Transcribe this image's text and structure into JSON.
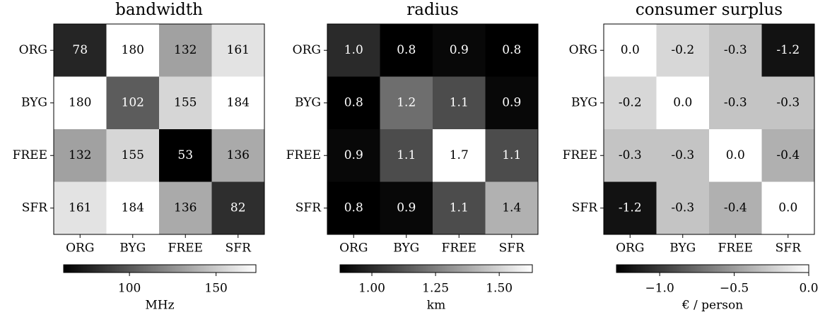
{
  "chart_data": [
    {
      "type": "heatmap",
      "title": "bandwidth",
      "colormap": "gray",
      "x_categories": [
        "ORG",
        "BYG",
        "FREE",
        "SFR"
      ],
      "y_categories": [
        "ORG",
        "BYG",
        "FREE",
        "SFR"
      ],
      "values": [
        [
          78,
          180,
          132,
          161
        ],
        [
          180,
          102,
          155,
          184
        ],
        [
          132,
          155,
          53,
          136
        ],
        [
          161,
          184,
          136,
          82
        ]
      ],
      "clim": [
        62,
        173
      ],
      "cticks": [
        100,
        150
      ],
      "clabel": "MHz"
    },
    {
      "type": "heatmap",
      "title": "radius",
      "colormap": "gray",
      "x_categories": [
        "ORG",
        "BYG",
        "FREE",
        "SFR"
      ],
      "y_categories": [
        "ORG",
        "BYG",
        "FREE",
        "SFR"
      ],
      "values": [
        [
          1.0,
          0.8,
          0.9,
          0.8
        ],
        [
          0.8,
          1.2,
          1.1,
          0.9
        ],
        [
          0.9,
          1.1,
          1.7,
          1.1
        ],
        [
          0.8,
          0.9,
          1.1,
          1.4
        ]
      ],
      "value_labels": [
        [
          "1.0",
          "0.8",
          "0.9",
          "0.8"
        ],
        [
          "0.8",
          "1.2",
          "1.1",
          "0.9"
        ],
        [
          "0.9",
          "1.1",
          "1.7",
          "1.1"
        ],
        [
          "0.8",
          "0.9",
          "1.1",
          "1.4"
        ]
      ],
      "clim": [
        0.875,
        1.63
      ],
      "cticks": [
        {
          "value": 1,
          "label": "1.00"
        },
        {
          "value": 1.25,
          "label": "1.25"
        },
        {
          "value": 1.5,
          "label": "1.50"
        }
      ],
      "clabel": "km"
    },
    {
      "type": "heatmap",
      "title": "consumer surplus",
      "colormap": "gray",
      "x_categories": [
        "ORG",
        "BYG",
        "FREE",
        "SFR"
      ],
      "y_categories": [
        "ORG",
        "BYG",
        "FREE",
        "SFR"
      ],
      "values": [
        [
          0.0,
          -0.2,
          -0.3,
          -1.2
        ],
        [
          -0.2,
          0.0,
          -0.3,
          -0.3
        ],
        [
          -0.3,
          -0.3,
          0.0,
          -0.4
        ],
        [
          -1.2,
          -0.3,
          -0.4,
          0.0
        ]
      ],
      "value_labels": [
        [
          "0.0",
          "-0.2",
          "-0.3",
          "-1.2"
        ],
        [
          "-0.2",
          "0.0",
          "-0.3",
          "-0.3"
        ],
        [
          "-0.3",
          "-0.3",
          "0.0",
          "-0.4"
        ],
        [
          "-1.2",
          "-0.3",
          "-0.4",
          "0.0"
        ]
      ],
      "clim": [
        -1.29,
        0
      ],
      "cticks": [
        {
          "value": -1,
          "label": "−1.0"
        },
        {
          "value": -0.5,
          "label": "−0.5"
        },
        {
          "value": 0,
          "label": "0.0"
        }
      ],
      "clabel": "€ / person"
    }
  ]
}
